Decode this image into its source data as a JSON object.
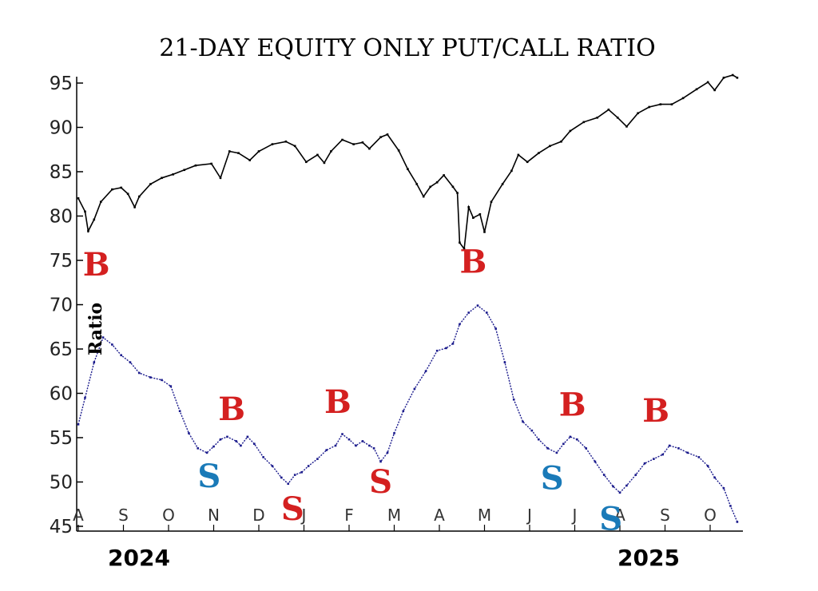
{
  "chart_data": {
    "type": "line",
    "title": "21-DAY EQUITY ONLY PUT/CALL RATIO",
    "ylabel": "Ratio",
    "ylim": [
      45,
      96
    ],
    "yticks": [
      45,
      50,
      55,
      60,
      65,
      70,
      75,
      80,
      85,
      90,
      95
    ],
    "x_months": [
      "A",
      "S",
      "O",
      "N",
      "D",
      "J",
      "F",
      "M",
      "A",
      "M",
      "J",
      "J",
      "A",
      "S",
      "O"
    ],
    "x_years": [
      "2024",
      "2025"
    ],
    "colors": {
      "ratio": "#1a1a8c",
      "index": "#000000",
      "buy": "#d42020",
      "sell_red": "#d42020",
      "sell_blue": "#1a7ab8"
    },
    "series": [
      {
        "name": "",
        "color": "#000000",
        "points": [
          [
            0.0,
            82.0
          ],
          [
            0.15,
            80.5
          ],
          [
            0.22,
            78.3
          ],
          [
            0.35,
            79.6
          ],
          [
            0.5,
            81.6
          ],
          [
            0.75,
            83.0
          ],
          [
            0.95,
            83.2
          ],
          [
            1.1,
            82.5
          ],
          [
            1.25,
            81.0
          ],
          [
            1.35,
            82.2
          ],
          [
            1.6,
            83.6
          ],
          [
            1.85,
            84.3
          ],
          [
            2.1,
            84.7
          ],
          [
            2.35,
            85.2
          ],
          [
            2.6,
            85.7
          ],
          [
            2.95,
            85.9
          ],
          [
            3.15,
            84.3
          ],
          [
            3.35,
            87.3
          ],
          [
            3.55,
            87.1
          ],
          [
            3.8,
            86.3
          ],
          [
            4.0,
            87.3
          ],
          [
            4.3,
            88.1
          ],
          [
            4.6,
            88.4
          ],
          [
            4.8,
            87.9
          ],
          [
            5.05,
            86.1
          ],
          [
            5.3,
            86.9
          ],
          [
            5.45,
            86.0
          ],
          [
            5.6,
            87.3
          ],
          [
            5.85,
            88.6
          ],
          [
            6.1,
            88.1
          ],
          [
            6.3,
            88.3
          ],
          [
            6.45,
            87.6
          ],
          [
            6.7,
            88.9
          ],
          [
            6.85,
            89.2
          ],
          [
            7.1,
            87.4
          ],
          [
            7.3,
            85.3
          ],
          [
            7.5,
            83.6
          ],
          [
            7.65,
            82.2
          ],
          [
            7.8,
            83.3
          ],
          [
            7.95,
            83.8
          ],
          [
            8.1,
            84.6
          ],
          [
            8.3,
            83.3
          ],
          [
            8.4,
            82.6
          ],
          [
            8.45,
            77.0
          ],
          [
            8.55,
            76.3
          ],
          [
            8.65,
            81.0
          ],
          [
            8.75,
            79.8
          ],
          [
            8.9,
            80.2
          ],
          [
            9.0,
            78.2
          ],
          [
            9.15,
            81.6
          ],
          [
            9.4,
            83.6
          ],
          [
            9.6,
            85.1
          ],
          [
            9.75,
            86.9
          ],
          [
            9.95,
            86.1
          ],
          [
            10.2,
            87.1
          ],
          [
            10.45,
            87.9
          ],
          [
            10.7,
            88.4
          ],
          [
            10.9,
            89.6
          ],
          [
            11.2,
            90.6
          ],
          [
            11.5,
            91.1
          ],
          [
            11.75,
            92.0
          ],
          [
            11.95,
            91.1
          ],
          [
            12.15,
            90.1
          ],
          [
            12.4,
            91.6
          ],
          [
            12.65,
            92.3
          ],
          [
            12.9,
            92.6
          ],
          [
            13.15,
            92.6
          ],
          [
            13.4,
            93.3
          ],
          [
            13.7,
            94.3
          ],
          [
            13.95,
            95.1
          ],
          [
            14.1,
            94.2
          ],
          [
            14.3,
            95.6
          ],
          [
            14.5,
            95.9
          ],
          [
            14.6,
            95.6
          ]
        ]
      },
      {
        "name": "Ratio",
        "color": "#1a1a8c",
        "points": [
          [
            0.0,
            56.5
          ],
          [
            0.15,
            59.5
          ],
          [
            0.35,
            63.5
          ],
          [
            0.55,
            66.3
          ],
          [
            0.75,
            65.5
          ],
          [
            0.95,
            64.3
          ],
          [
            1.15,
            63.5
          ],
          [
            1.35,
            62.3
          ],
          [
            1.6,
            61.8
          ],
          [
            1.85,
            61.5
          ],
          [
            2.05,
            60.8
          ],
          [
            2.25,
            58.0
          ],
          [
            2.45,
            55.5
          ],
          [
            2.65,
            53.8
          ],
          [
            2.85,
            53.3
          ],
          [
            3.0,
            54.0
          ],
          [
            3.15,
            54.8
          ],
          [
            3.3,
            55.1
          ],
          [
            3.5,
            54.6
          ],
          [
            3.6,
            54.1
          ],
          [
            3.75,
            55.1
          ],
          [
            3.9,
            54.3
          ],
          [
            4.1,
            52.8
          ],
          [
            4.3,
            51.8
          ],
          [
            4.5,
            50.5
          ],
          [
            4.65,
            49.8
          ],
          [
            4.8,
            50.8
          ],
          [
            4.95,
            51.1
          ],
          [
            5.1,
            51.8
          ],
          [
            5.3,
            52.6
          ],
          [
            5.5,
            53.6
          ],
          [
            5.7,
            54.1
          ],
          [
            5.85,
            55.4
          ],
          [
            6.0,
            54.8
          ],
          [
            6.15,
            54.1
          ],
          [
            6.3,
            54.6
          ],
          [
            6.45,
            54.1
          ],
          [
            6.55,
            53.8
          ],
          [
            6.7,
            52.3
          ],
          [
            6.85,
            53.3
          ],
          [
            7.0,
            55.5
          ],
          [
            7.2,
            58.0
          ],
          [
            7.45,
            60.5
          ],
          [
            7.7,
            62.5
          ],
          [
            7.95,
            64.8
          ],
          [
            8.15,
            65.1
          ],
          [
            8.3,
            65.6
          ],
          [
            8.45,
            67.8
          ],
          [
            8.65,
            69.1
          ],
          [
            8.85,
            69.9
          ],
          [
            9.05,
            69.1
          ],
          [
            9.25,
            67.3
          ],
          [
            9.45,
            63.5
          ],
          [
            9.65,
            59.3
          ],
          [
            9.85,
            56.8
          ],
          [
            10.05,
            55.8
          ],
          [
            10.2,
            54.8
          ],
          [
            10.4,
            53.8
          ],
          [
            10.6,
            53.3
          ],
          [
            10.75,
            54.3
          ],
          [
            10.9,
            55.1
          ],
          [
            11.05,
            54.8
          ],
          [
            11.25,
            53.8
          ],
          [
            11.45,
            52.3
          ],
          [
            11.65,
            50.8
          ],
          [
            11.85,
            49.5
          ],
          [
            12.0,
            48.8
          ],
          [
            12.15,
            49.6
          ],
          [
            12.35,
            50.8
          ],
          [
            12.55,
            52.1
          ],
          [
            12.75,
            52.6
          ],
          [
            12.95,
            53.1
          ],
          [
            13.1,
            54.1
          ],
          [
            13.3,
            53.8
          ],
          [
            13.5,
            53.3
          ],
          [
            13.75,
            52.8
          ],
          [
            13.95,
            51.8
          ],
          [
            14.1,
            50.5
          ],
          [
            14.3,
            49.3
          ],
          [
            14.45,
            47.3
          ],
          [
            14.6,
            45.5
          ]
        ]
      }
    ],
    "annotations": [
      {
        "text": "B",
        "x": 0.4,
        "y": 73.3,
        "color": "#d42020"
      },
      {
        "text": "B",
        "x": 3.4,
        "y": 57.0,
        "color": "#d42020"
      },
      {
        "text": "B",
        "x": 5.75,
        "y": 57.8,
        "color": "#d42020"
      },
      {
        "text": "B",
        "x": 8.75,
        "y": 73.6,
        "color": "#d42020"
      },
      {
        "text": "B",
        "x": 10.95,
        "y": 57.5,
        "color": "#d42020"
      },
      {
        "text": "B",
        "x": 12.8,
        "y": 56.8,
        "color": "#d42020"
      },
      {
        "text": "S",
        "x": 2.9,
        "y": 49.4,
        "color": "#1a7ab8"
      },
      {
        "text": "S",
        "x": 4.75,
        "y": 45.7,
        "color": "#d42020"
      },
      {
        "text": "S",
        "x": 6.7,
        "y": 48.8,
        "color": "#d42020"
      },
      {
        "text": "S",
        "x": 10.5,
        "y": 49.2,
        "color": "#1a7ab8"
      },
      {
        "text": "S",
        "x": 11.8,
        "y": 44.6,
        "color": "#1a7ab8"
      }
    ]
  }
}
